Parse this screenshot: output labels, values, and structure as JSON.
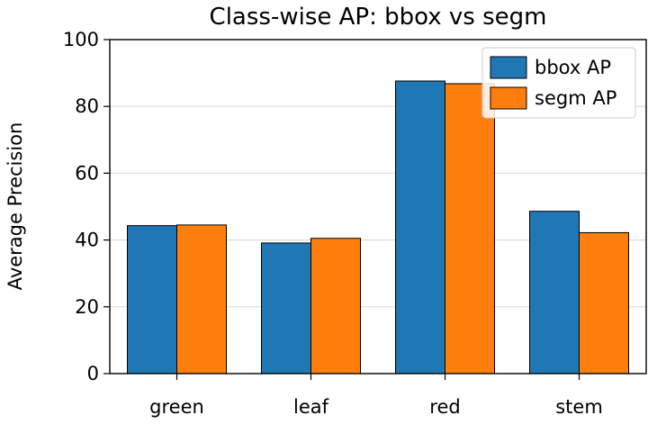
{
  "chart_data": {
    "type": "bar",
    "title": "Class-wise AP: bbox vs segm",
    "xlabel": "",
    "ylabel": "Average Precision",
    "categories": [
      "green",
      "leaf",
      "red",
      "stem"
    ],
    "series": [
      {
        "name": "bbox AP",
        "color": "#1f77b4",
        "values": [
          44.3,
          39.1,
          87.6,
          48.6
        ]
      },
      {
        "name": "segm AP",
        "color": "#ff7f0e",
        "values": [
          44.5,
          40.5,
          86.8,
          42.2
        ]
      }
    ],
    "ylim": [
      0,
      100
    ],
    "yticks": [
      0,
      20,
      40,
      60,
      80,
      100
    ],
    "grid": "horizontal",
    "legend_position": "top-right"
  }
}
